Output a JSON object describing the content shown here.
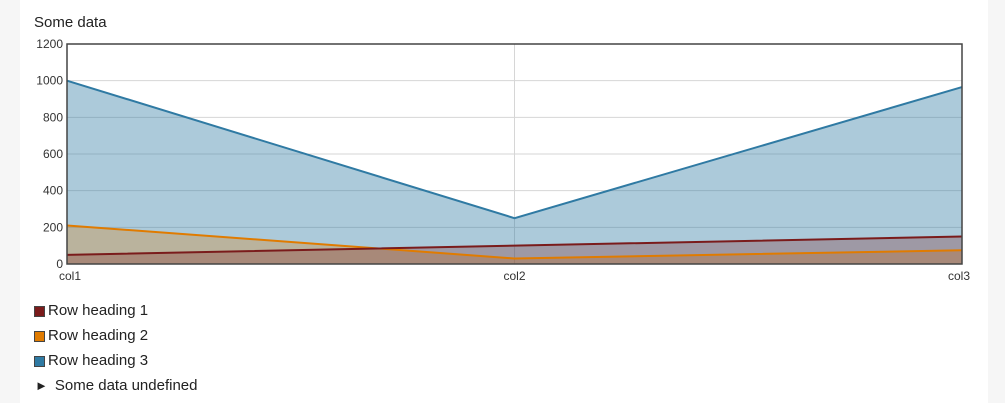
{
  "chart_data": {
    "type": "area",
    "title": "Some data",
    "categories": [
      "col1",
      "col2",
      "col3"
    ],
    "ylim": [
      0,
      1200
    ],
    "yticks": [
      0,
      200,
      400,
      600,
      800,
      1000,
      1200
    ],
    "grid": true,
    "legend_placement": "bottom-left",
    "series": [
      {
        "name": "Row heading 1",
        "values": [
          50,
          100,
          150
        ],
        "color": "#7a1b1b"
      },
      {
        "name": "Row heading 2",
        "values": [
          210,
          30,
          75
        ],
        "color": "#e07b00"
      },
      {
        "name": "Row heading 3",
        "values": [
          1000,
          250,
          965
        ],
        "color": "#2f7aa3"
      }
    ]
  },
  "toggle": {
    "arrow": "►",
    "label": "Some data undefined"
  }
}
